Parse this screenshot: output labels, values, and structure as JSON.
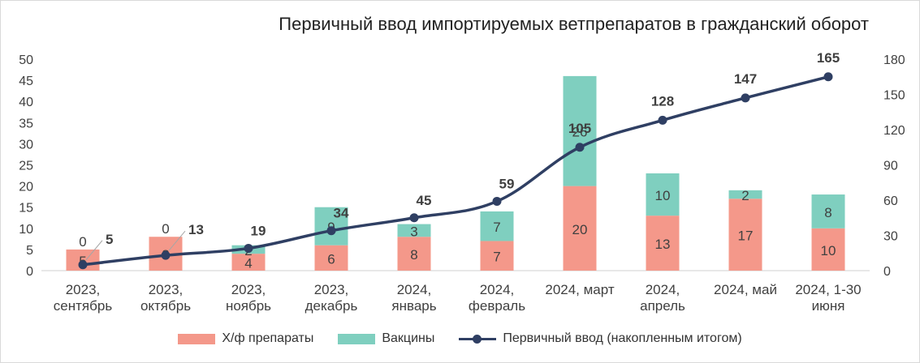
{
  "chart_data": {
    "type": "bar",
    "title": "Первичный ввод импортируемых ветпрепаратов в гражданский оборот",
    "categories": [
      [
        "2023,",
        "сентябрь"
      ],
      [
        "2023,",
        "октябрь"
      ],
      [
        "2023,",
        "ноябрь"
      ],
      [
        "2023,",
        "декабрь"
      ],
      [
        "2024,",
        "январь"
      ],
      [
        "2024,",
        "февраль"
      ],
      [
        "2024, март"
      ],
      [
        "2024,",
        "апрель"
      ],
      [
        "2024, май"
      ],
      [
        "2024, 1-30",
        "июня"
      ]
    ],
    "series": [
      {
        "name": "Х/ф препараты",
        "kind": "bar",
        "stack": "main",
        "axis": "left",
        "color": "#f4988a",
        "values": [
          5,
          8,
          4,
          6,
          8,
          7,
          20,
          13,
          17,
          10
        ]
      },
      {
        "name": "Вакцины",
        "kind": "bar",
        "stack": "main",
        "axis": "left",
        "color": "#7fcfbf",
        "values": [
          0,
          0,
          2,
          9,
          3,
          7,
          26,
          10,
          2,
          8
        ]
      },
      {
        "name": "Первичный ввод (накопленным итогом)",
        "kind": "line",
        "axis": "right",
        "color": "#2f3f63",
        "values": [
          5,
          13,
          19,
          34,
          45,
          59,
          105,
          128,
          147,
          165
        ]
      }
    ],
    "y_left": {
      "min": 0,
      "max": 50,
      "step": 5,
      "ticks": [
        "0",
        "5",
        "10",
        "15",
        "20",
        "25",
        "30",
        "35",
        "40",
        "45",
        "50"
      ]
    },
    "y_right": {
      "min": 0,
      "max": 180,
      "step": 30,
      "ticks": [
        "0",
        "30",
        "60",
        "90",
        "120",
        "150",
        "180"
      ]
    },
    "legend_position": "bottom",
    "grid": false
  }
}
